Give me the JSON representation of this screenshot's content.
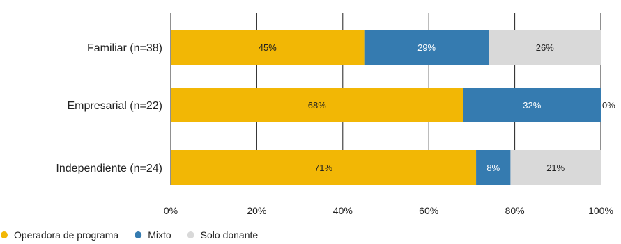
{
  "chart_data": {
    "type": "bar",
    "orientation": "horizontal",
    "stacked": true,
    "categories": [
      "Familiar (n=38)",
      "Empresarial (n=22)",
      "Independiente (n=24)"
    ],
    "series": [
      {
        "name": "Operadora de programa",
        "color": "#f2b705",
        "values": [
          45,
          68,
          71
        ],
        "labels": [
          "45%",
          "68%",
          "71%"
        ],
        "label_color": "#222222"
      },
      {
        "name": "Mixto",
        "color": "#357bb0",
        "values": [
          29,
          32,
          8
        ],
        "labels": [
          "29%",
          "32%",
          "8%"
        ],
        "label_color": "#ffffff"
      },
      {
        "name": "Solo donante",
        "color": "#d9d9d9",
        "values": [
          26,
          0,
          21
        ],
        "labels": [
          "26%",
          "0%",
          "21%"
        ],
        "label_color": "#222222"
      }
    ],
    "x_ticks": [
      "0%",
      "20%",
      "40%",
      "60%",
      "80%",
      "100%"
    ],
    "xlim": [
      0,
      100
    ],
    "grid": true,
    "legend": "bottom-left"
  }
}
